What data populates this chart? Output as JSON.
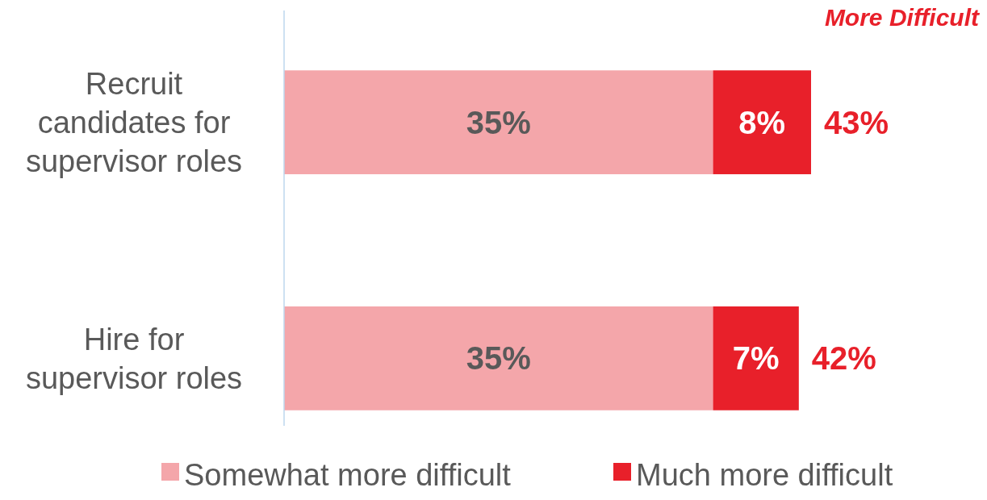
{
  "chart_data": {
    "type": "bar",
    "orientation": "horizontal",
    "stacked": true,
    "categories": [
      "Recruit candidates for supervisor roles",
      "Hire for supervisor roles"
    ],
    "series": [
      {
        "name": "Somewhat more difficult",
        "color": "#f4a6aa",
        "values": [
          35,
          35
        ],
        "value_labels": [
          "35%",
          "35%"
        ]
      },
      {
        "name": "Much more difficult",
        "color": "#e8202a",
        "values": [
          8,
          7
        ],
        "value_labels": [
          "8%",
          "7%"
        ]
      }
    ],
    "totals": [
      "43%",
      "42%"
    ],
    "legend": "bottom",
    "annotations": [
      "More Difficult"
    ]
  }
}
